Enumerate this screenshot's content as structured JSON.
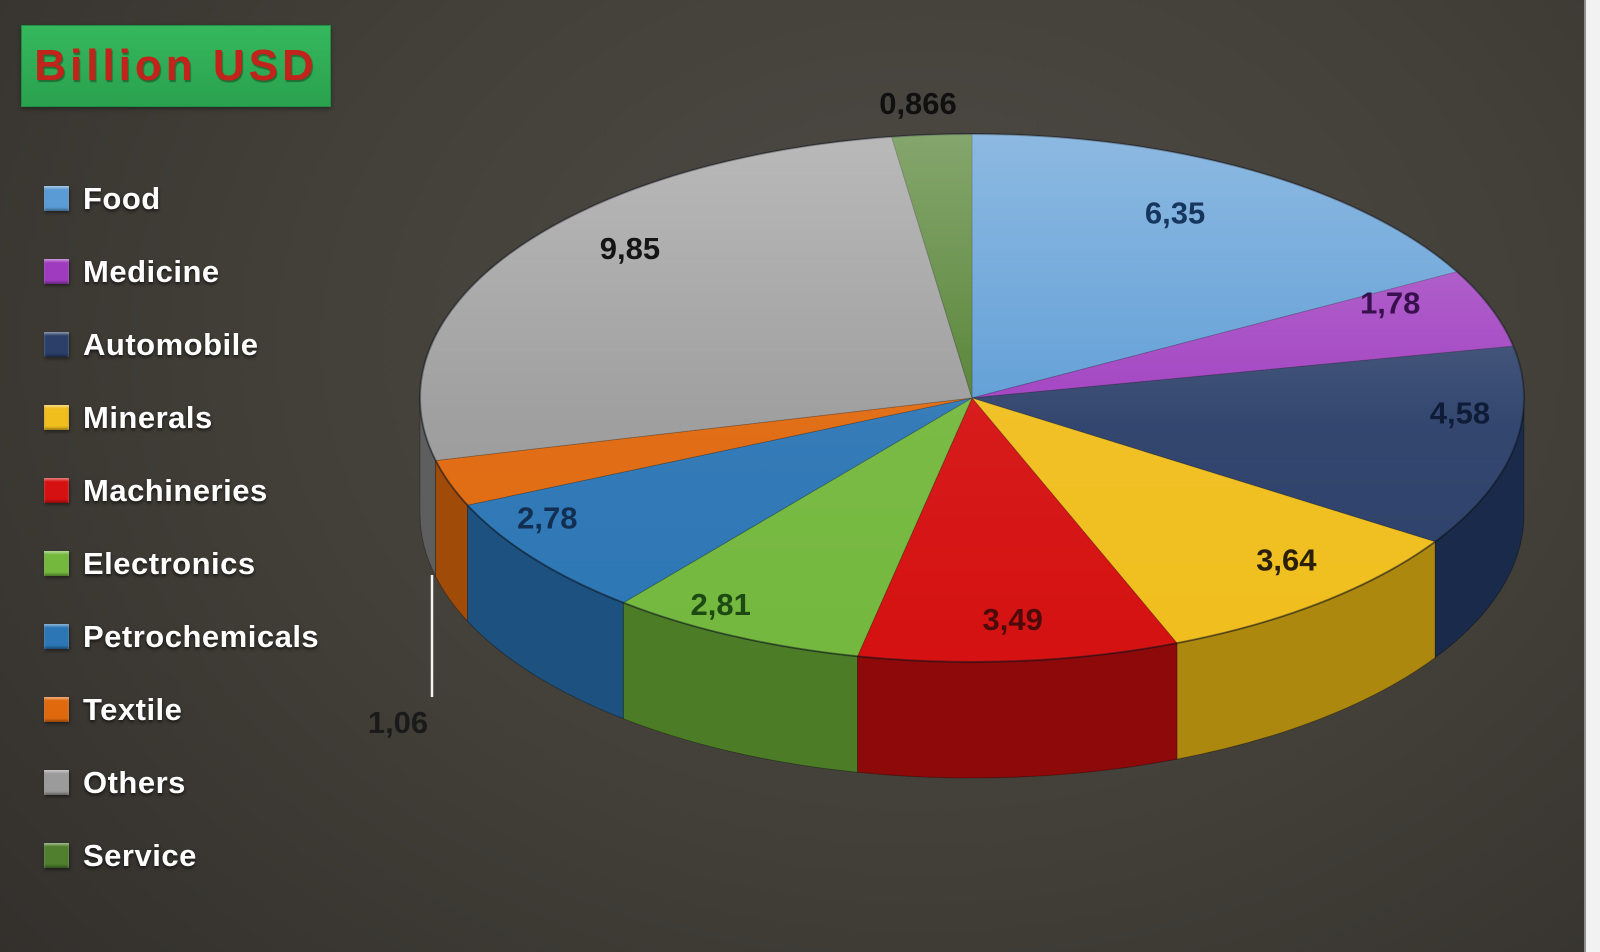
{
  "title": {
    "text": "Billion USD"
  },
  "chart_data": {
    "type": "pie",
    "title": "Billion USD",
    "unit": "Billion USD",
    "legend_position": "left",
    "start_angle_deg": 0,
    "clockwise": true,
    "style": "3d",
    "categories": [
      "Food",
      "Medicine",
      "Automobile",
      "Minerals",
      "Machineries",
      "Electronics",
      "Petrochemicals",
      "Textile",
      "Others",
      "Service"
    ],
    "values": [
      6.35,
      1.78,
      4.58,
      3.64,
      3.49,
      2.81,
      2.78,
      1.06,
      9.85,
      0.866
    ],
    "labels": [
      "6,35",
      "1,78",
      "4,58",
      "3,64",
      "3,49",
      "2,81",
      "2,78",
      "1,06",
      "9,85",
      "0,866"
    ],
    "colors_top": [
      "#5b9bd5",
      "#9e3bbf",
      "#2b3f69",
      "#f0be1d",
      "#d51111",
      "#74b83e",
      "#2c76b5",
      "#e0690e",
      "#9b9b9b",
      "#507f2e"
    ],
    "colors_side": [
      "#3a6f9e",
      "#71258a",
      "#1a2a4a",
      "#ad880e",
      "#8e0909",
      "#4c7d26",
      "#1c5180",
      "#a04b08",
      "#5e5e5e",
      "#375a1e"
    ],
    "label_colors": [
      "#17365d",
      "#38104e",
      "#0e1c38",
      "#2a2008",
      "#4d0a0a",
      "#1c4a12",
      "#122f52",
      "#1a1a1a",
      "#141414",
      "#101010"
    ]
  },
  "colors": {
    "title_box_bg": "#2fae53",
    "title_text": "#c2231b",
    "legend_text": "#ffffff",
    "background_dark": "#2b2927",
    "right_strip": "#f2f2f2"
  }
}
